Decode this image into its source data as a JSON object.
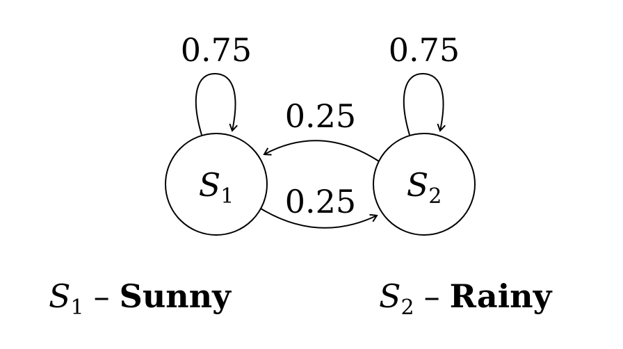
{
  "states": [
    {
      "symbol": "S",
      "subscript": "1",
      "meaning": "Sunny"
    },
    {
      "symbol": "S",
      "subscript": "2",
      "meaning": "Rainy"
    }
  ],
  "transitions": {
    "s1_to_s1": "0.75",
    "s2_to_s2": "0.75",
    "s2_to_s1": "0.25",
    "s1_to_s2": "0.25"
  },
  "legend_separator": "–",
  "colors": {
    "ink": "#000000",
    "background": "#ffffff"
  }
}
